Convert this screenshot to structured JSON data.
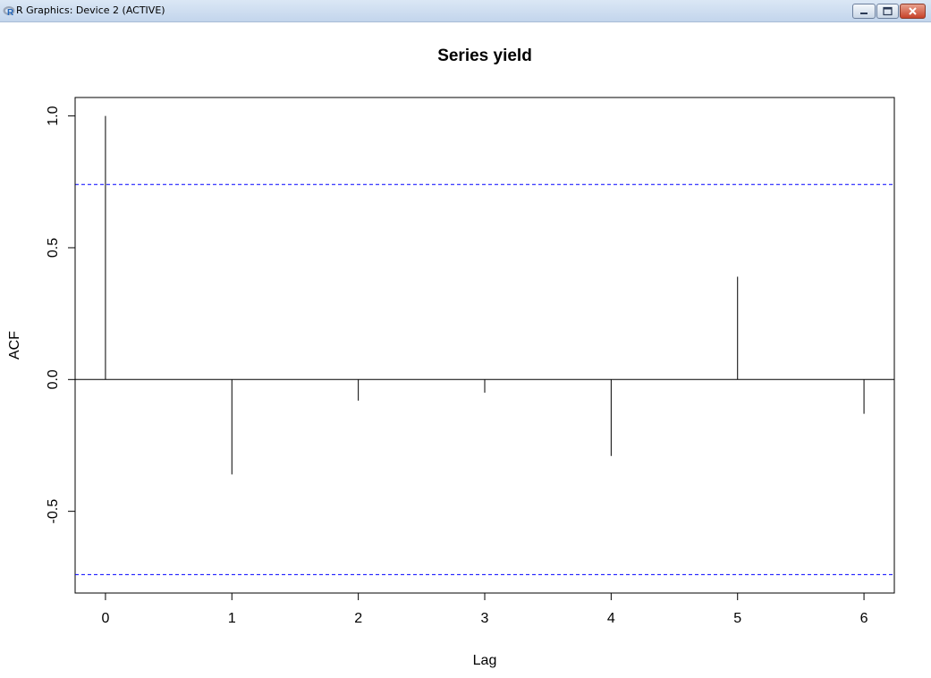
{
  "window": {
    "title": "R Graphics: Device 2 (ACTIVE)",
    "app_icon": "r-logo-icon",
    "controls": [
      "minimize-icon",
      "maximize-icon",
      "close-icon"
    ]
  },
  "chart_data": {
    "type": "bar",
    "title": "Series  yield",
    "xlabel": "Lag",
    "ylabel": "ACF",
    "x": [
      0,
      1,
      2,
      3,
      4,
      5,
      6
    ],
    "values": [
      1.0,
      -0.36,
      -0.08,
      -0.05,
      -0.29,
      0.39,
      -0.13
    ],
    "xlim": [
      -0.24,
      6.24
    ],
    "ylim": [
      -0.81,
      1.07
    ],
    "x_ticks": [
      0,
      1,
      2,
      3,
      4,
      5,
      6
    ],
    "y_ticks": [
      -0.5,
      0.0,
      0.5,
      1.0
    ],
    "y_tick_labels": [
      "-0.5",
      "0.0",
      "0.5",
      "1.0"
    ],
    "confidence_bounds": [
      0.74,
      -0.74
    ],
    "colors": {
      "bars": "#000000",
      "confidence": "#0000ff",
      "zero_line": "#000000"
    },
    "grid": false
  }
}
